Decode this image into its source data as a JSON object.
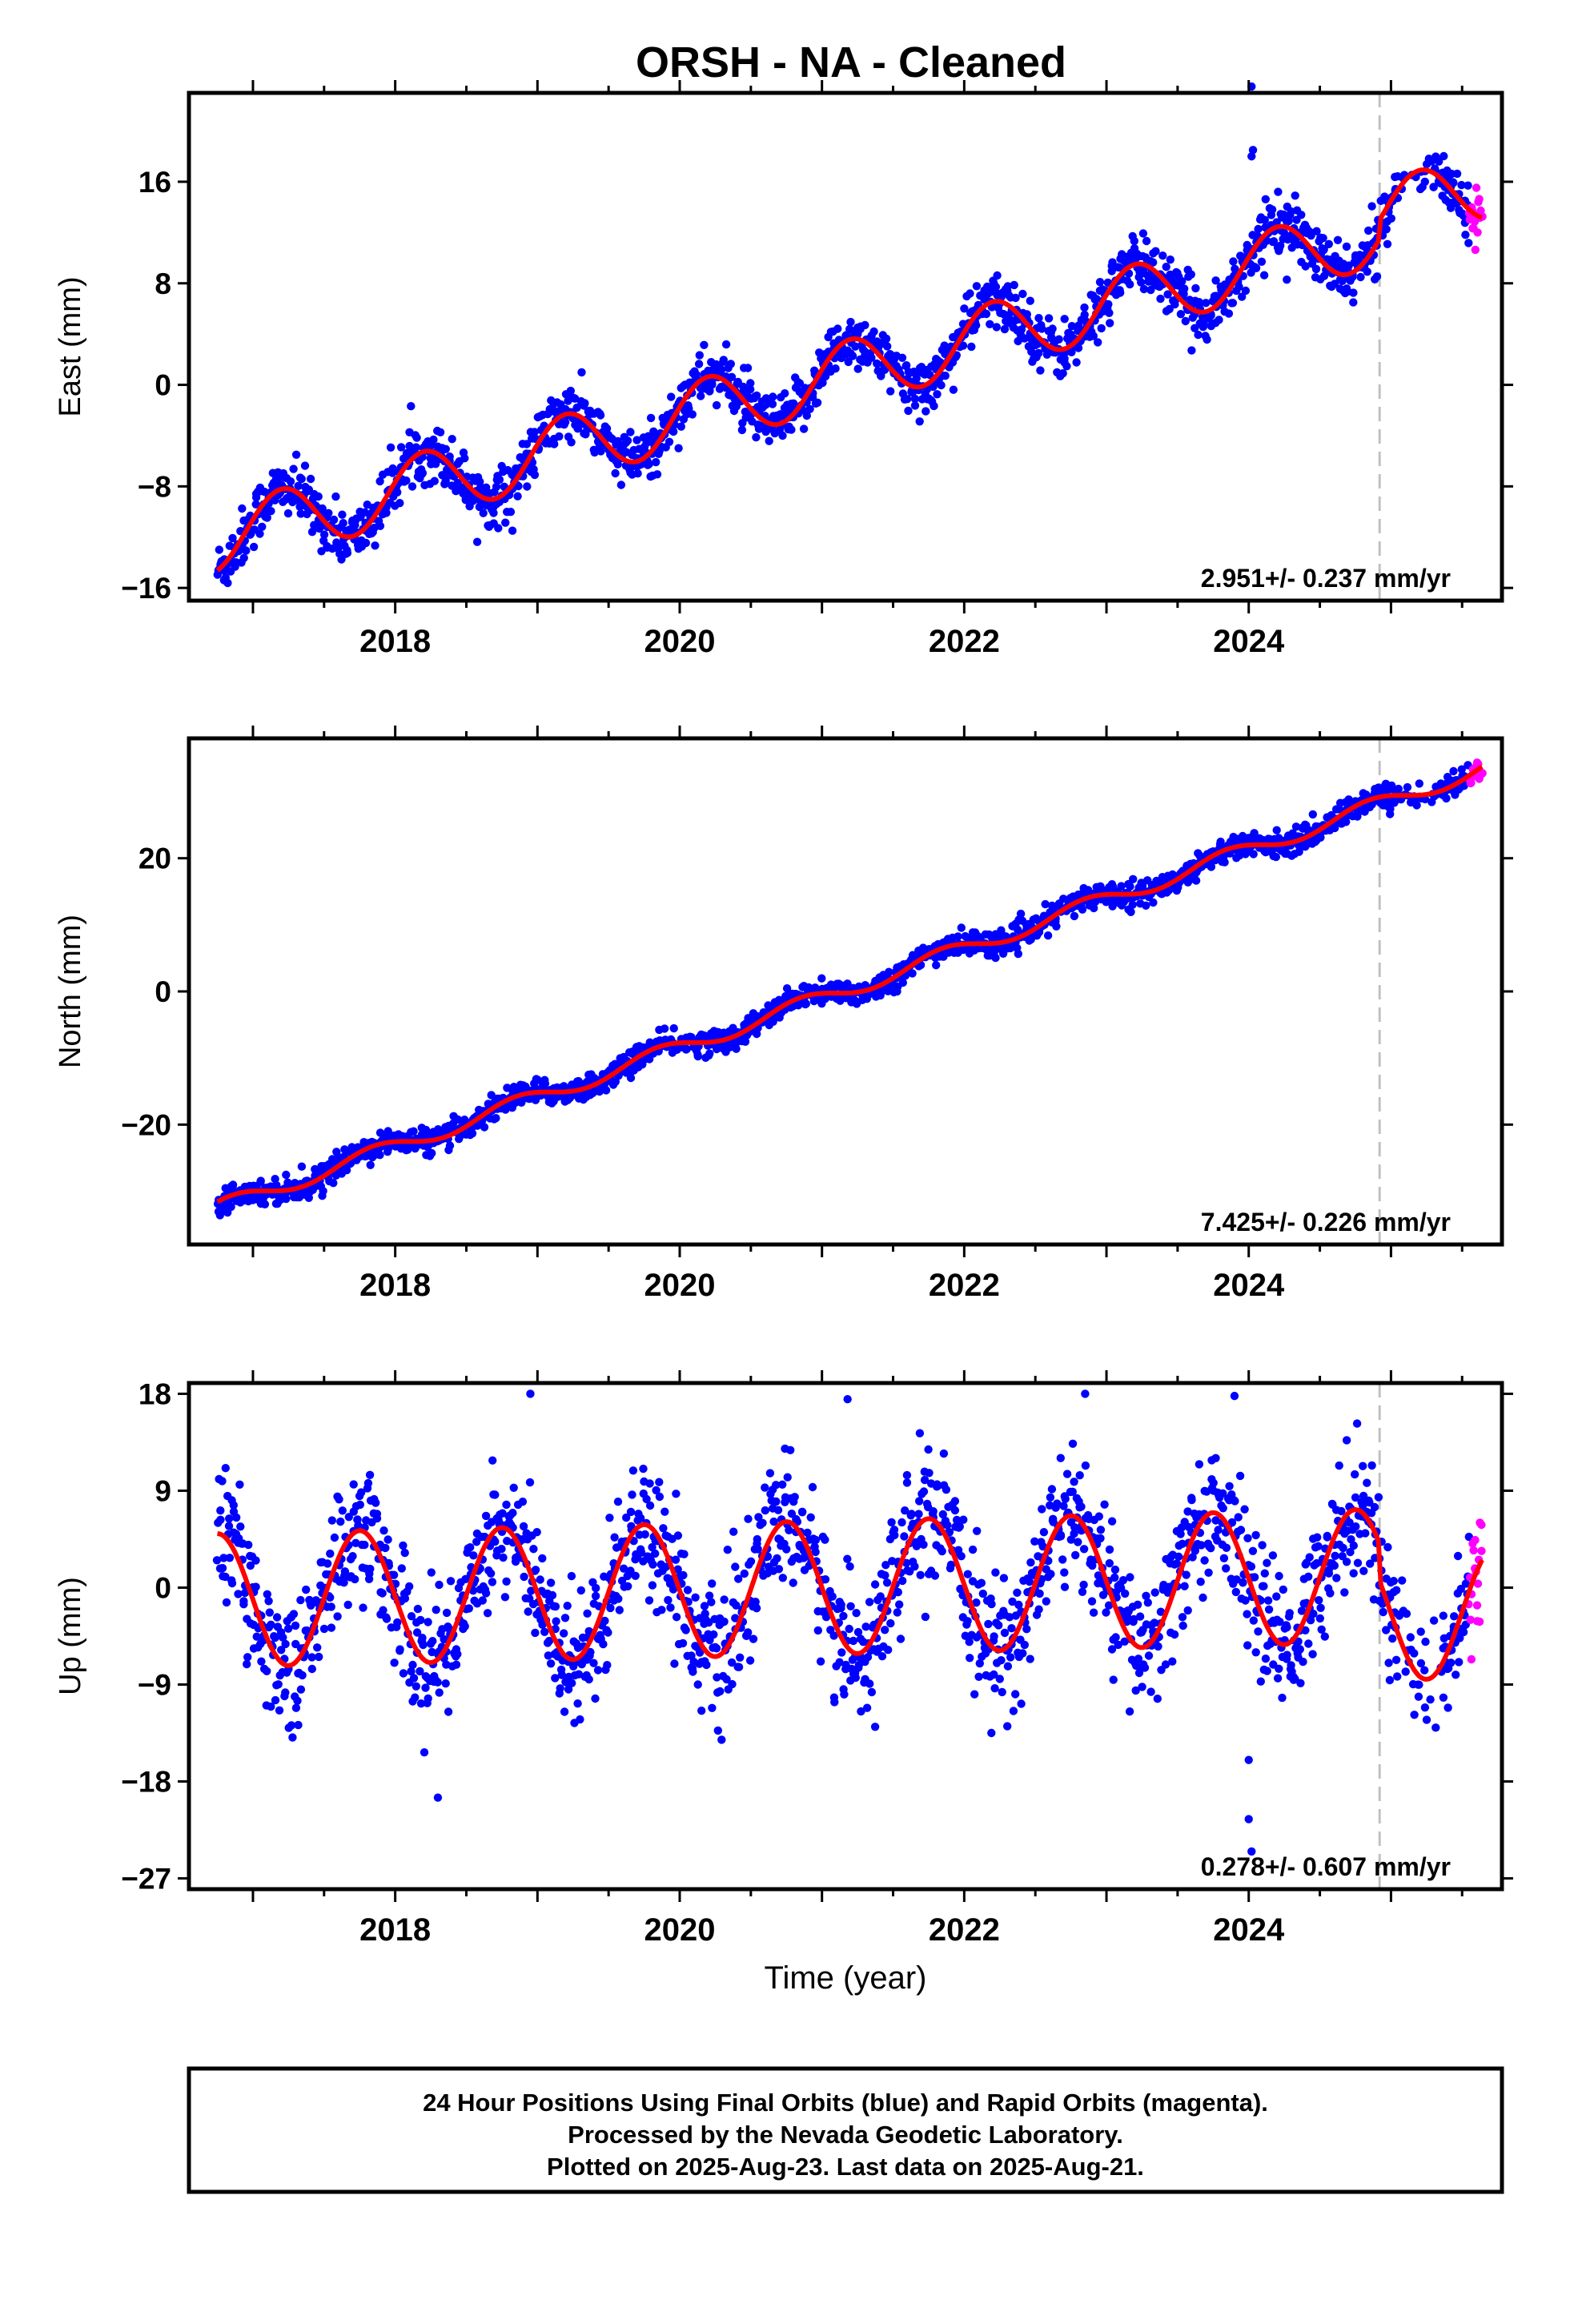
{
  "title": "ORSH  - NA - Cleaned",
  "footer": {
    "line1": "24 Hour Positions Using Final Orbits (blue) and Rapid Orbits (magenta).",
    "line2": "Processed by the Nevada Geodetic Laboratory.",
    "line3": "Plotted on 2025-Aug-23. Last data on 2025-Aug-21."
  },
  "colors": {
    "final_orbits": "#0000ff",
    "rapid_orbits": "#ff00ff",
    "model": "#ff0000",
    "marker_line": "#c0c0c0"
  },
  "chart_data": [
    {
      "type": "scatter",
      "panel": "east",
      "title": "ORSH  - NA - Cleaned",
      "xlabel": "",
      "ylabel": "East (mm)",
      "xlim": [
        2016.55,
        2025.78
      ],
      "ylim": [
        -17,
        23
      ],
      "xticks": [
        2018,
        2020,
        2022,
        2024
      ],
      "xtick_labels": [
        "2018",
        "2020",
        "2022",
        "2024"
      ],
      "yticks": [
        -16,
        -8,
        0,
        8,
        16
      ],
      "ytick_labels": [
        "−16",
        "−8",
        "0",
        "8",
        "16"
      ],
      "grid": false,
      "data_start": 2016.75,
      "data_end": 2025.64,
      "rapid_start": 2025.55,
      "event_line_x": 2024.92,
      "model": {
        "rate_mm_per_yr": 2.951,
        "annual_amplitude": 2.6,
        "annual_phase_year": 2016.95,
        "offset_at_2021": 0.4,
        "post_event_shift": 1.5
      },
      "scatter_sd": 1.1,
      "rate_label": "2.951+/- 0.237 mm/yr",
      "outliers": [
        {
          "x": 2024.02,
          "y": 23.5
        },
        {
          "x": 2024.03,
          "y": 18.5
        },
        {
          "x": 2024.02,
          "y": 18.0
        }
      ]
    },
    {
      "type": "scatter",
      "panel": "north",
      "xlabel": "",
      "ylabel": "North (mm)",
      "xlim": [
        2016.55,
        2025.78
      ],
      "ylim": [
        -38,
        38
      ],
      "xticks": [
        2018,
        2020,
        2022,
        2024
      ],
      "xtick_labels": [
        "2018",
        "2020",
        "2022",
        "2024"
      ],
      "yticks": [
        -20,
        0,
        20
      ],
      "ytick_labels": [
        "−20",
        "0",
        "20"
      ],
      "grid": false,
      "data_start": 2016.75,
      "data_end": 2025.64,
      "rapid_start": 2025.55,
      "event_line_x": 2024.92,
      "model": {
        "rate_mm_per_yr": 7.425,
        "annual_amplitude": 1.2,
        "annual_phase_year": 2016.6,
        "offset_at_2021": -1.0,
        "post_event_shift": 0.0
      },
      "scatter_sd": 0.9,
      "rate_label": "7.425+/- 0.226 mm/yr",
      "outliers": []
    },
    {
      "type": "scatter",
      "panel": "up",
      "xlabel": "Time (year)",
      "ylabel": "Up (mm)",
      "xlim": [
        2016.55,
        2025.78
      ],
      "ylim": [
        -28,
        19
      ],
      "xticks": [
        2018,
        2020,
        2022,
        2024
      ],
      "xtick_labels": [
        "2018",
        "2020",
        "2022",
        "2024"
      ],
      "yticks": [
        -27,
        -18,
        -9,
        0,
        9,
        18
      ],
      "ytick_labels": [
        "−27",
        "−18",
        "−9",
        "0",
        "9",
        "18"
      ],
      "grid": false,
      "data_start": 2016.75,
      "data_end": 2025.64,
      "rapid_start": 2025.55,
      "event_line_x": 2024.92,
      "model": {
        "rate_mm_per_yr": 0.278,
        "annual_amplitude": 6.2,
        "annual_phase_year": 2016.5,
        "offset_at_2021": 0.0,
        "post_event_shift": -3.5
      },
      "scatter_sd": 3.0,
      "rate_label": "0.278+/- 0.607 mm/yr",
      "outliers": [
        {
          "x": 2018.3,
          "y": -19.5
        },
        {
          "x": 2024.0,
          "y": -16.0
        },
        {
          "x": 2024.0,
          "y": -21.5
        },
        {
          "x": 2024.02,
          "y": -24.5
        },
        {
          "x": 2018.95,
          "y": 18.0
        },
        {
          "x": 2021.18,
          "y": 17.5
        },
        {
          "x": 2022.85,
          "y": 18.0
        },
        {
          "x": 2023.9,
          "y": 17.8
        }
      ]
    }
  ]
}
